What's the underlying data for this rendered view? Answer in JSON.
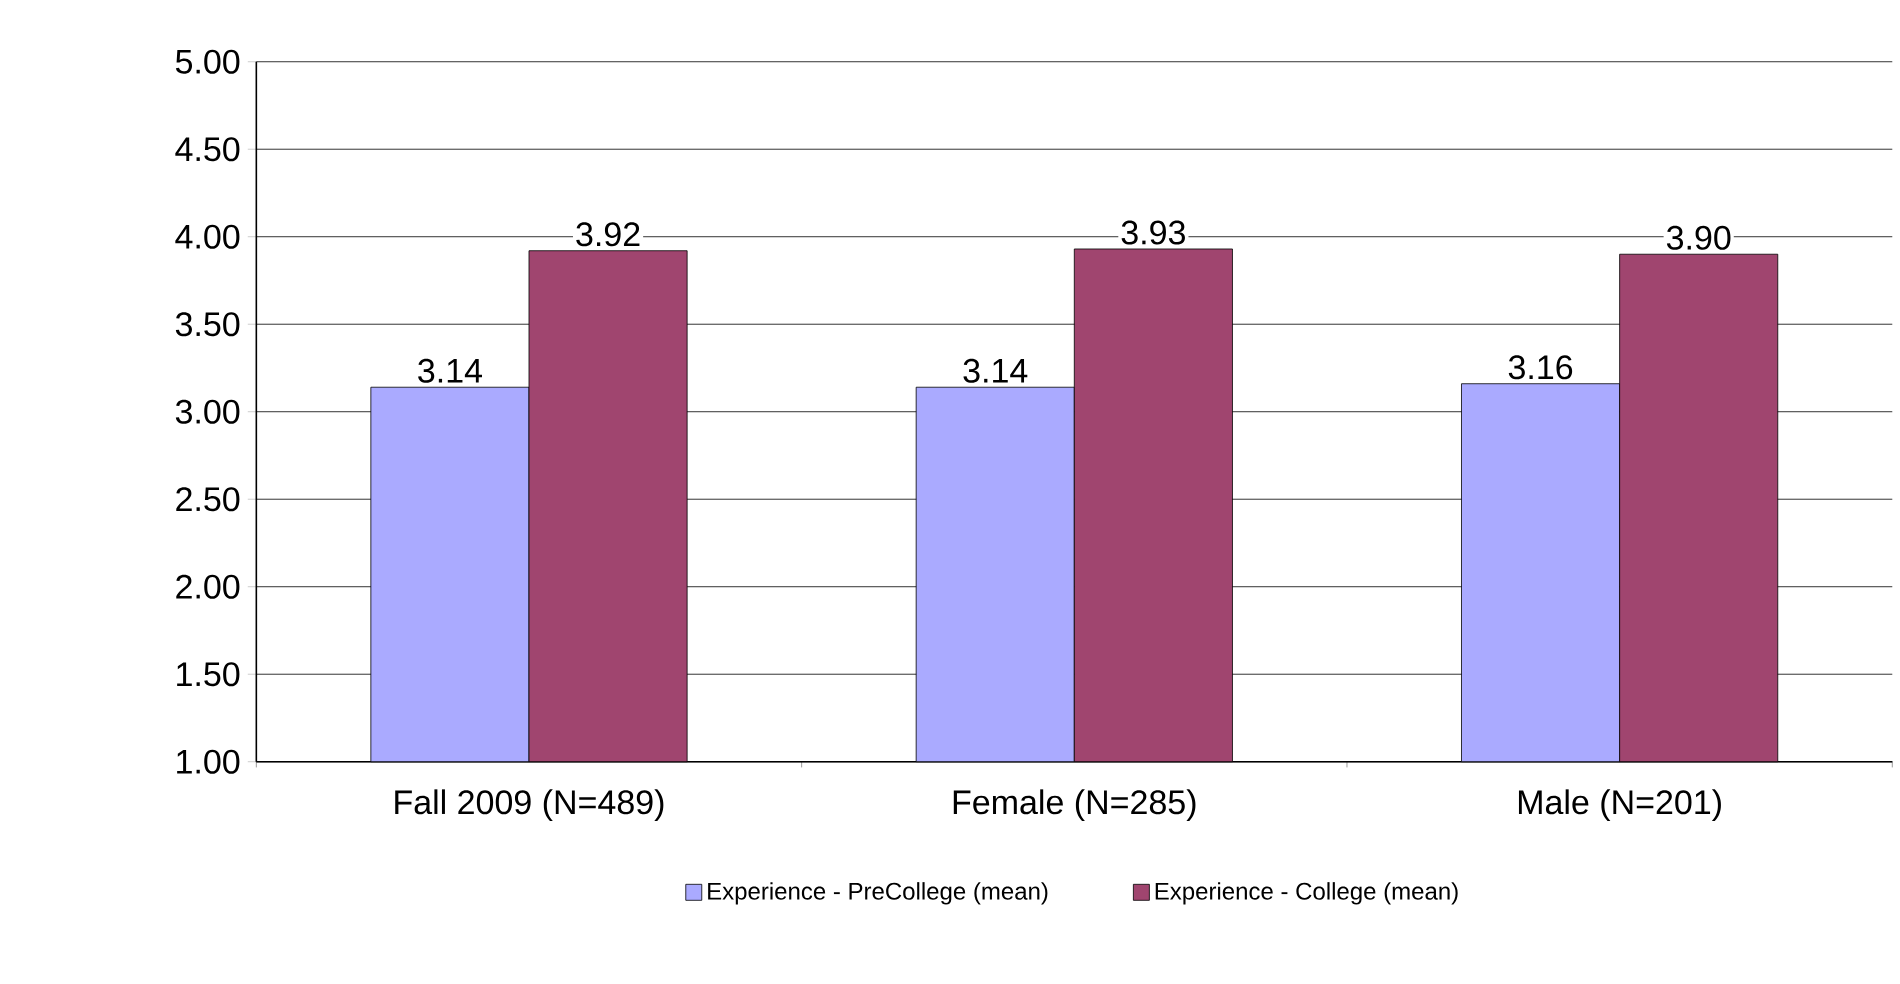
{
  "chart_data": {
    "type": "bar",
    "categories": [
      "Fall 2009 (N=489)",
      "Female (N=285)",
      "Male (N=201)"
    ],
    "series": [
      {
        "name": "Experience - PreCollege (mean)",
        "color": "#aaaaff",
        "values": [
          3.14,
          3.14,
          3.16
        ],
        "value_labels": [
          "3.14",
          "3.14",
          "3.16"
        ]
      },
      {
        "name": "Experience - College (mean)",
        "color": "#a0456f",
        "values": [
          3.92,
          3.93,
          3.9
        ],
        "value_labels": [
          "3.92",
          "3.93",
          "3.90"
        ]
      }
    ],
    "ylim": [
      1,
      5
    ],
    "yticks": [
      {
        "value": 1,
        "label": "1.00"
      },
      {
        "value": 1.5,
        "label": "1.50"
      },
      {
        "value": 2,
        "label": "2.00"
      },
      {
        "value": 2.5,
        "label": "2.50"
      },
      {
        "value": 3,
        "label": "3.00"
      },
      {
        "value": 3.5,
        "label": "3.50"
      },
      {
        "value": 4,
        "label": "4.00"
      },
      {
        "value": 4.5,
        "label": "4.50"
      },
      {
        "value": 5,
        "label": "5.00"
      }
    ],
    "grid": "y",
    "legend": "bottom"
  }
}
